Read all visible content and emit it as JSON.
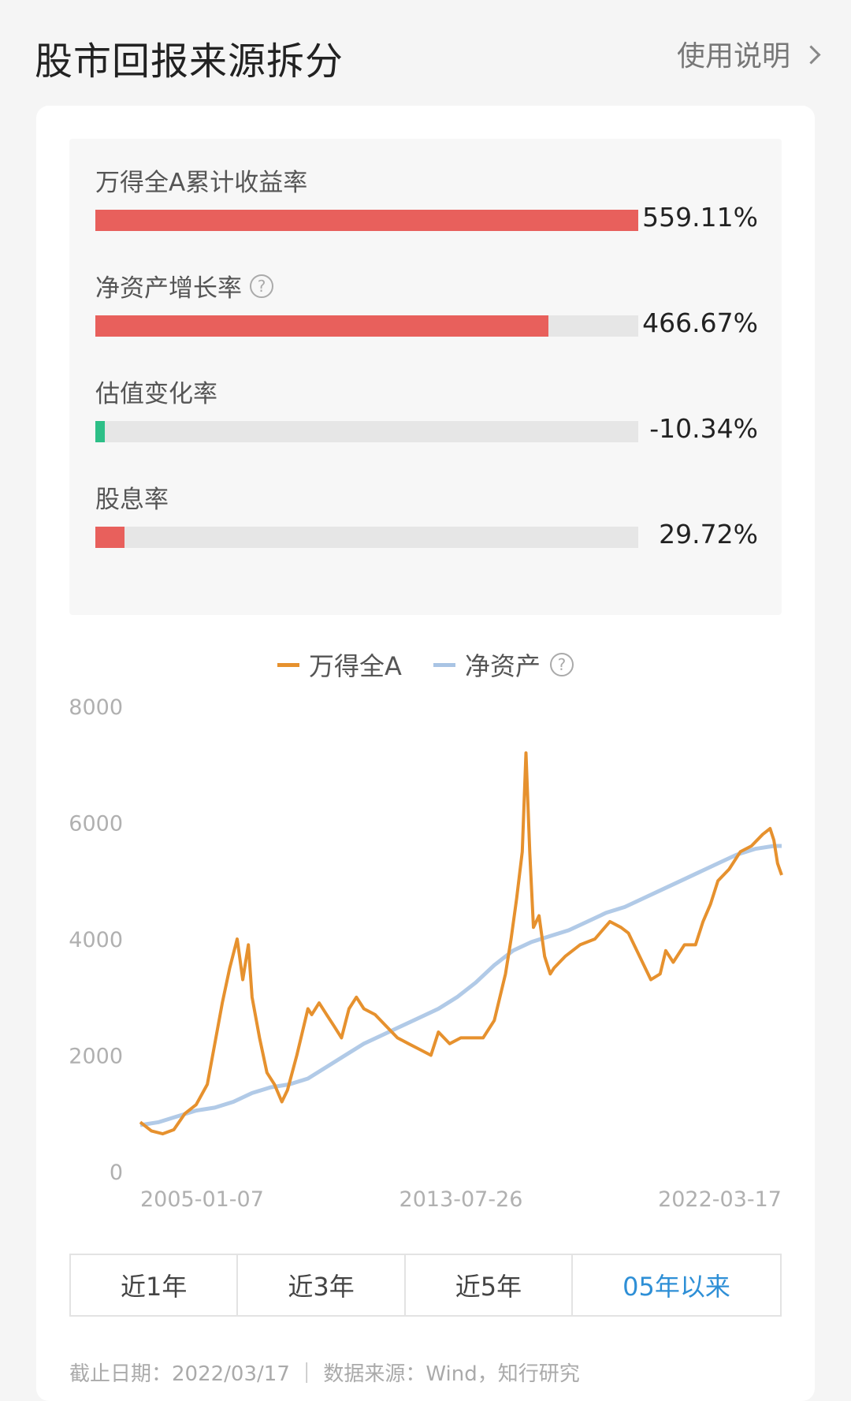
{
  "header": {
    "title": "股市回报来源拆分",
    "help_label": "使用说明"
  },
  "decomposition": [
    {
      "label": "万得全A累计收益率",
      "value_text": "559.11%",
      "fill_fraction": 1.0,
      "color": "#e8605c",
      "help": false
    },
    {
      "label": "净资产增长率",
      "value_text": "466.67%",
      "fill_fraction": 0.834,
      "color": "#e8605c",
      "help": true
    },
    {
      "label": "估值变化率",
      "value_text": "-10.34%",
      "fill_fraction": 0.018,
      "color": "#2dbf87",
      "help": false
    },
    {
      "label": "股息率",
      "value_text": "29.72%",
      "fill_fraction": 0.053,
      "color": "#e8605c",
      "help": false
    }
  ],
  "chart_data": {
    "type": "line",
    "legend": [
      {
        "name": "万得全A",
        "color": "#e6912e"
      },
      {
        "name": "净资产",
        "color": "#a9c4e4",
        "help": true
      }
    ],
    "y_ticks": [
      "8000",
      "6000",
      "4000",
      "2000",
      "0"
    ],
    "x_ticks": [
      "2005-01-07",
      "2013-07-26",
      "2022-03-17"
    ],
    "ylim": [
      0,
      8000
    ],
    "xlim": [
      2005.0,
      2022.21
    ],
    "series": [
      {
        "name": "万得全A",
        "color": "#e6912e",
        "x": [
          2005.0,
          2005.3,
          2005.6,
          2005.9,
          2006.2,
          2006.5,
          2006.8,
          2007.0,
          2007.2,
          2007.4,
          2007.6,
          2007.75,
          2007.9,
          2008.0,
          2008.2,
          2008.4,
          2008.6,
          2008.8,
          2008.95,
          2009.2,
          2009.5,
          2009.6,
          2009.8,
          2010.0,
          2010.2,
          2010.4,
          2010.6,
          2010.8,
          2011.0,
          2011.3,
          2011.6,
          2011.9,
          2012.2,
          2012.5,
          2012.8,
          2013.0,
          2013.3,
          2013.6,
          2013.9,
          2014.2,
          2014.5,
          2014.8,
          2014.95,
          2015.1,
          2015.25,
          2015.35,
          2015.45,
          2015.55,
          2015.7,
          2015.85,
          2016.0,
          2016.1,
          2016.4,
          2016.8,
          2017.2,
          2017.6,
          2017.9,
          2018.1,
          2018.4,
          2018.7,
          2018.95,
          2019.1,
          2019.3,
          2019.6,
          2019.9,
          2020.1,
          2020.3,
          2020.5,
          2020.8,
          2021.1,
          2021.4,
          2021.7,
          2021.9,
          2022.0,
          2022.1,
          2022.21
        ],
        "y": [
          850,
          700,
          650,
          720,
          1000,
          1150,
          1500,
          2200,
          2900,
          3500,
          4000,
          3300,
          3900,
          3000,
          2300,
          1700,
          1500,
          1200,
          1400,
          2000,
          2800,
          2700,
          2900,
          2700,
          2500,
          2300,
          2800,
          3000,
          2800,
          2700,
          2500,
          2300,
          2200,
          2100,
          2000,
          2400,
          2200,
          2300,
          2300,
          2300,
          2600,
          3400,
          4000,
          4700,
          5500,
          7200,
          5500,
          4200,
          4400,
          3700,
          3400,
          3500,
          3700,
          3900,
          4000,
          4300,
          4200,
          4100,
          3700,
          3300,
          3400,
          3800,
          3600,
          3900,
          3900,
          4300,
          4600,
          5000,
          5200,
          5500,
          5600,
          5800,
          5900,
          5700,
          5300,
          5100
        ]
      },
      {
        "name": "净资产",
        "color": "#a9c4e4",
        "x": [
          2005.0,
          2005.5,
          2006.0,
          2006.5,
          2007.0,
          2007.5,
          2008.0,
          2008.5,
          2009.0,
          2009.5,
          2010.0,
          2010.5,
          2011.0,
          2011.5,
          2012.0,
          2012.5,
          2013.0,
          2013.5,
          2014.0,
          2014.5,
          2015.0,
          2015.5,
          2016.0,
          2016.5,
          2017.0,
          2017.5,
          2018.0,
          2018.5,
          2019.0,
          2019.5,
          2020.0,
          2020.5,
          2021.0,
          2021.5,
          2022.0,
          2022.21
        ],
        "y": [
          800,
          850,
          950,
          1050,
          1100,
          1200,
          1350,
          1450,
          1500,
          1600,
          1800,
          2000,
          2200,
          2350,
          2500,
          2650,
          2800,
          3000,
          3250,
          3550,
          3800,
          3950,
          4050,
          4150,
          4300,
          4450,
          4550,
          4700,
          4850,
          5000,
          5150,
          5300,
          5450,
          5550,
          5600,
          5600
        ]
      }
    ]
  },
  "range_tabs": [
    "近1年",
    "近3年",
    "近5年",
    "05年以来"
  ],
  "active_range": "05年以来",
  "footer": {
    "note": "截止日期：2022/03/17  ｜  数据来源：Wind，知行研究"
  }
}
